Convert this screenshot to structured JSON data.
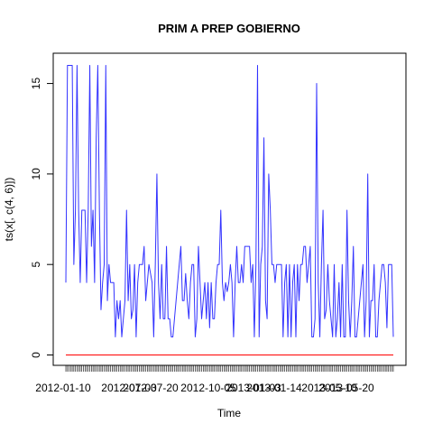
{
  "chart_data": {
    "type": "line",
    "title": "PRIM A PREP GOBIERNO",
    "xlabel": "Time",
    "ylabel": "ts(x[, c(4, 6)])",
    "ylim": [
      0,
      16
    ],
    "y_ticks": [
      0,
      5,
      10,
      15
    ],
    "x_tick_labels": [
      "2012-01-10",
      "2012-07-03",
      "2012-07-20",
      "2012-10-05",
      "2013-01-03",
      "2013-01-14",
      "2013-05-10",
      "2013-05-20"
    ],
    "grid": false,
    "legend": "none",
    "series": [
      {
        "color": "#3333ff",
        "values": [
          4,
          16,
          16,
          16,
          16,
          5,
          8,
          16,
          8,
          4,
          8,
          8,
          8,
          4,
          8,
          16,
          6,
          8,
          4,
          12,
          16,
          8,
          2.5,
          4,
          5,
          16,
          3,
          5,
          4,
          4,
          4,
          1,
          3,
          2,
          3,
          1,
          2,
          3,
          8,
          3,
          5,
          2,
          2.5,
          5,
          1,
          4,
          5,
          5,
          5,
          6,
          3,
          4,
          5,
          4.5,
          4,
          1,
          5,
          10,
          4,
          2,
          5,
          2,
          2,
          6,
          2,
          2,
          1,
          1,
          2,
          3,
          4,
          5,
          6,
          3,
          3,
          4.5,
          3,
          2,
          4,
          5,
          5,
          1,
          2,
          6,
          4,
          2,
          3,
          4,
          2,
          4,
          1.5,
          4,
          2,
          2,
          4,
          5,
          5,
          8,
          4,
          3,
          4,
          3.5,
          4,
          5,
          4,
          1,
          4,
          6,
          4,
          4,
          5,
          4,
          6,
          6,
          6,
          6,
          4,
          5,
          1,
          5,
          16,
          1,
          5,
          6,
          12,
          3,
          2,
          10,
          8,
          5,
          5,
          4,
          5,
          5,
          5,
          5,
          1,
          4,
          5,
          1,
          5,
          1,
          4,
          5,
          1,
          5,
          3,
          5,
          5,
          6,
          6,
          4,
          5,
          6,
          1,
          1,
          2,
          15,
          4,
          1,
          5,
          8,
          2,
          2.5,
          5,
          3,
          2,
          1,
          5,
          1,
          2,
          4,
          1,
          5,
          1,
          1,
          8,
          3,
          1,
          3,
          6,
          1,
          1,
          2,
          3,
          4,
          5,
          1,
          3,
          10,
          1,
          3,
          3,
          5,
          1,
          1,
          3,
          4,
          5,
          5,
          4,
          1.5,
          5,
          5,
          5,
          1
        ]
      },
      {
        "color": "#ff0000",
        "values": [
          0,
          0
        ]
      }
    ]
  }
}
